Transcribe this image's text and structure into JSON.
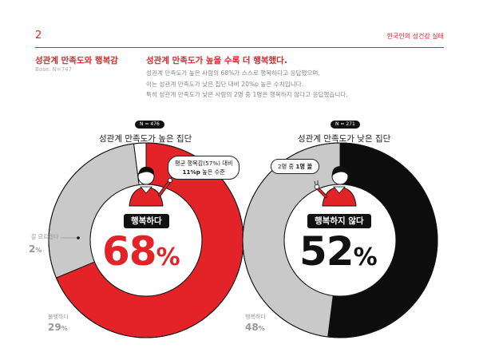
{
  "header": {
    "page_number": "2",
    "report_title": "한국인의 성건강 실태"
  },
  "section": {
    "title": "성관계 만족도와 행복감",
    "base": "Base: N=747",
    "headline": "성관계 만족도가 높을 수록 더 행복했다.",
    "body_lines": [
      "성관계 만족도가 높은 사람의 68%가 스스로 행복하다고 응답했으며,",
      "이는 성관계 만족도가 낮은 집단 대비 20%p 높은 수치입니다.",
      "특히 성관계 만족도가 낮은 사람의 2명 중 1명은 행복하지 않다고 응답했습니다."
    ]
  },
  "left_group": {
    "n_badge": "N = 476",
    "title": "성관계 만족도가 높은 집단",
    "bubble_line1": "평균 행복감(57%) 대비",
    "bubble_line2_bold": "11%p",
    "bubble_line2_rest": " 높은 수준",
    "result_label": "행복하다",
    "big_value": "68",
    "big_unit": "%",
    "label_unsure": "잘 모르겠다",
    "pct_unsure": "2",
    "label_unhappy": "불행하다",
    "pct_unhappy": "29",
    "unit": "%",
    "segments": [
      {
        "name": "행복하다",
        "value": 68,
        "color": "#e42329"
      },
      {
        "name": "불행하다",
        "value": 29,
        "color": "#c9c9c9"
      },
      {
        "name": "잘 모르겠다",
        "value": 2,
        "color": "#ffffff"
      }
    ]
  },
  "right_group": {
    "n_badge": "N = 271",
    "title": "성관계 만족도가 낮은 집단",
    "bubble_prefix": "2명 중 ",
    "bubble_bold": "1명 꼴",
    "result_label": "행복하지 않다",
    "big_value": "52",
    "big_unit": "%",
    "label_happy": "행복하다",
    "pct_happy": "48",
    "unit": "%",
    "segments": [
      {
        "name": "행복하지 않다",
        "value": 52,
        "color": "#0d0d0d"
      },
      {
        "name": "행복하다",
        "value": 48,
        "color": "#c9c9c9"
      }
    ]
  },
  "colors": {
    "accent": "#e42329",
    "dark": "#0d0d0d",
    "gray": "#c9c9c9"
  }
}
